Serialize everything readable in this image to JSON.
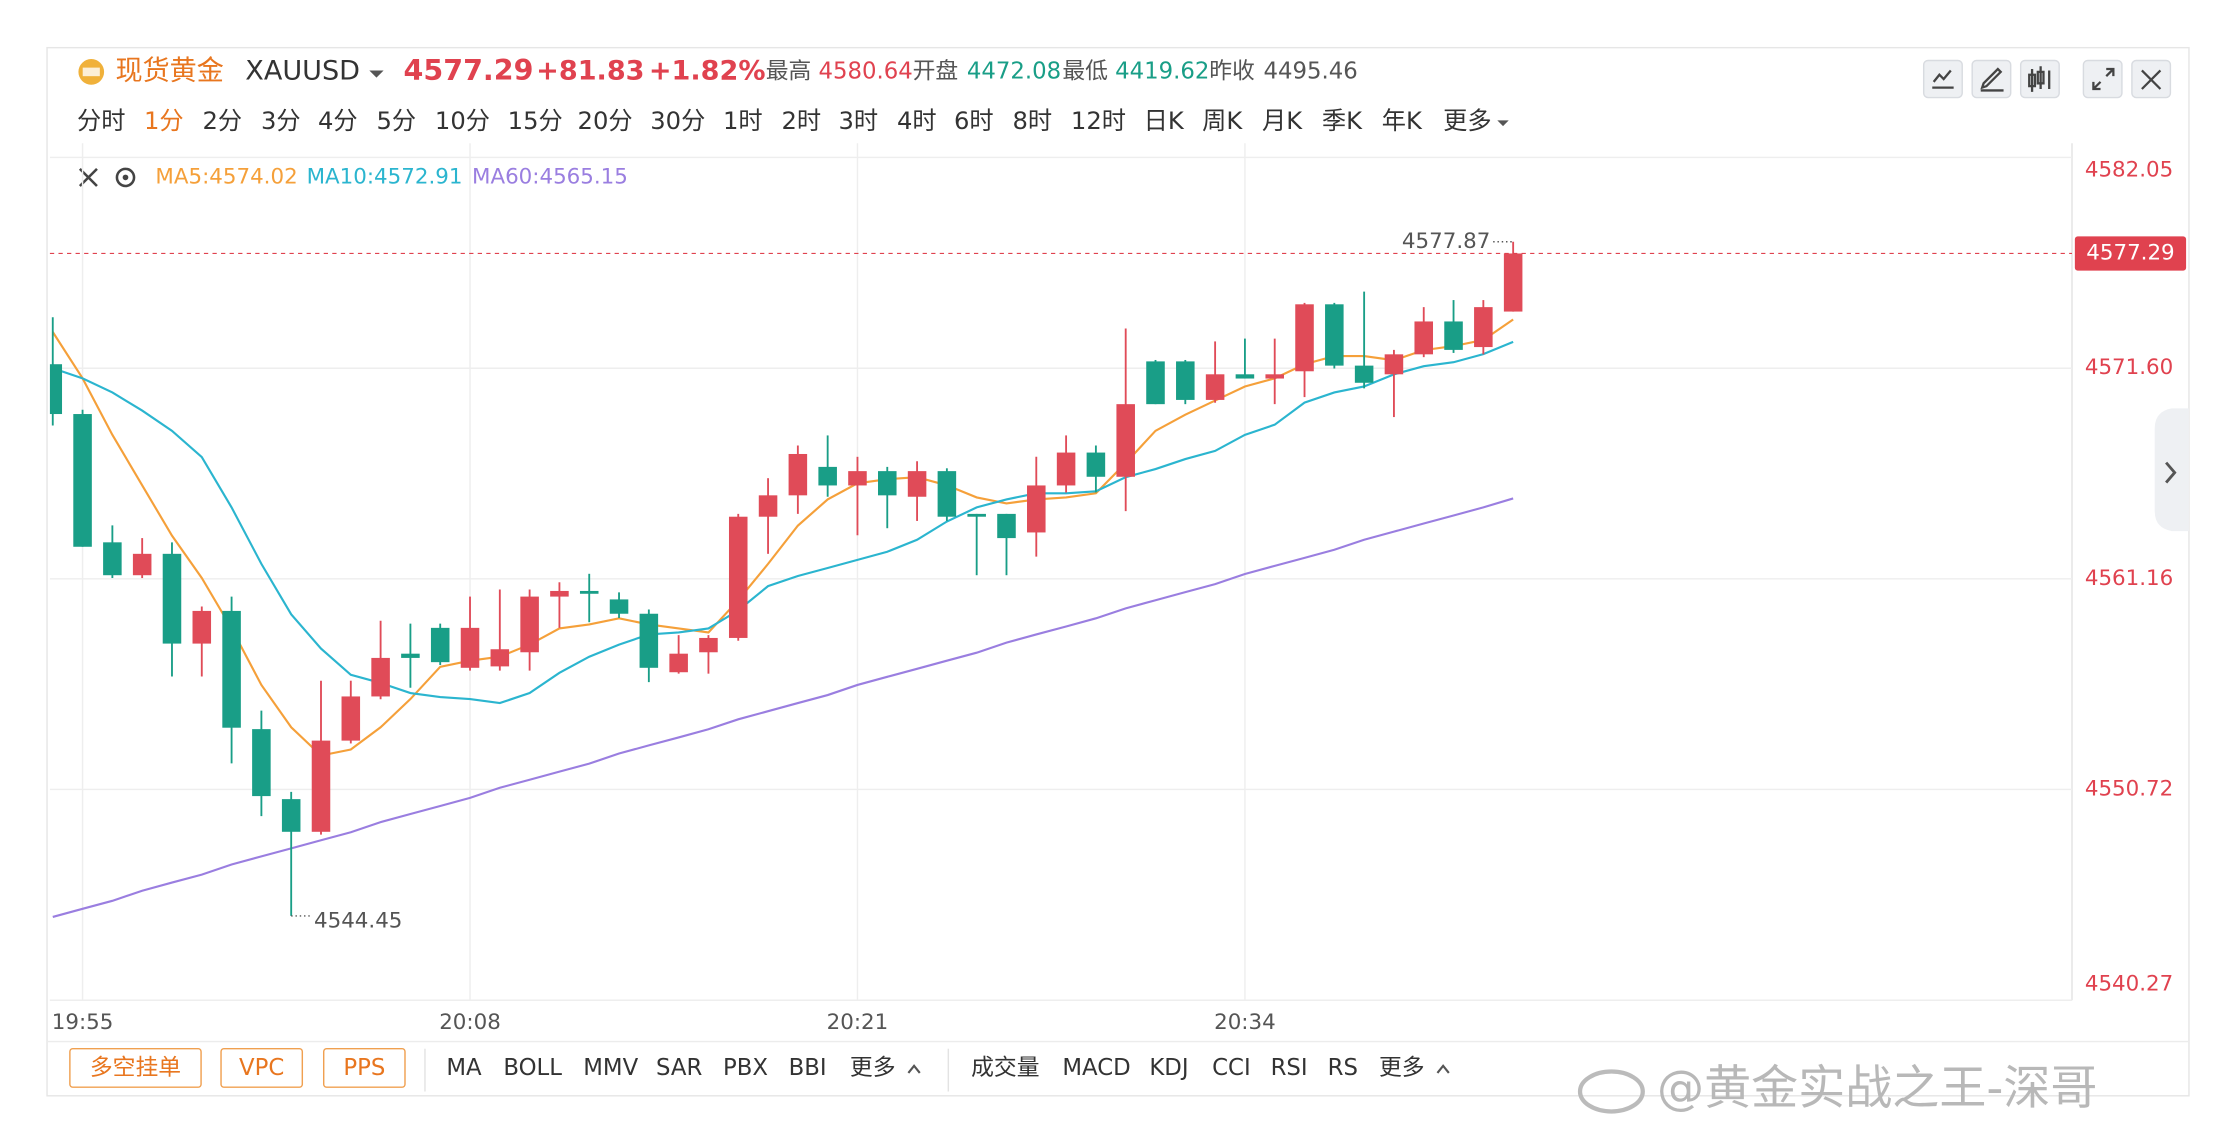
{
  "header": {
    "name": "现货黄金",
    "symbol": "XAUUSD",
    "change": "+81.83",
    "change_pct": "+1.82%",
    "high_label": "最高",
    "high": "4580.64",
    "open_label": "开盘",
    "open": "4472.08",
    "low_label": "最低",
    "low": "4419.62",
    "prev_label": "昨收",
    "prev": "4495.46"
  },
  "intervals": {
    "items": [
      "分时",
      "1分",
      "2分",
      "3分",
      "4分",
      "5分",
      "10分",
      "15分",
      "20分",
      "30分",
      "1时",
      "2时",
      "3时",
      "4时",
      "6时",
      "8时",
      "12时",
      "日K",
      "周K",
      "月K",
      "季K",
      "年K",
      "更多"
    ],
    "selected": 1
  },
  "bottom": {
    "buttons": [
      "多空挂单",
      "VPC",
      "PPS"
    ],
    "main_indicators": [
      "MA",
      "BOLL",
      "MMV",
      "SAR",
      "PBX",
      "BBI",
      "更多"
    ],
    "sub_indicators": [
      "成交量",
      "MACD",
      "KDJ",
      "CCI",
      "RSI",
      "RS",
      "更多"
    ]
  },
  "watermark": "@黄金实战之王-深哥",
  "chart_data": {
    "type": "candlestick",
    "categories": [
      null,
      "19:55",
      null,
      null,
      null,
      null,
      null,
      null,
      null,
      null,
      null,
      null,
      null,
      null,
      "20:08",
      null,
      null,
      null,
      null,
      null,
      null,
      null,
      null,
      null,
      null,
      null,
      null,
      "20:21",
      null,
      null,
      null,
      null,
      null,
      null,
      null,
      null,
      null,
      null,
      null,
      null,
      "20:34",
      null,
      null,
      null,
      null,
      null,
      null,
      null,
      null,
      null
    ],
    "open": [
      4571.8,
      4569.33,
      4562.97,
      4561.34,
      4562.4,
      4557.95,
      4559.57,
      4553.71,
      4550.24,
      4548.62,
      4553.14,
      4555.33,
      4557.45,
      4558.73,
      4556.75,
      4556.82,
      4557.52,
      4560.28,
      4560.56,
      4560.14,
      4559.43,
      4556.53,
      4557.52,
      4558.23,
      4564.24,
      4565.3,
      4566.71,
      4565.79,
      4566.5,
      4565.23,
      4566.5,
      4564.38,
      4564.38,
      4563.46,
      4565.79,
      4567.42,
      4566.22,
      4571.94,
      4571.94,
      4570.03,
      4571.3,
      4571.09,
      4571.45,
      4574.77,
      4571.73,
      4571.3,
      4572.29,
      4573.92,
      4572.65,
      4574.41
    ],
    "high": [
      4574.13,
      4569.54,
      4563.81,
      4563.18,
      4562.97,
      4559.79,
      4560.28,
      4554.63,
      4550.6,
      4556.11,
      4556.11,
      4559.08,
      4558.94,
      4558.94,
      4560.28,
      4560.63,
      4560.63,
      4560.99,
      4561.41,
      4560.49,
      4559.64,
      4558.37,
      4558.37,
      4564.38,
      4566.15,
      4567.77,
      4568.27,
      4567.21,
      4566.71,
      4566.99,
      4566.64,
      4564.38,
      4564.38,
      4567.21,
      4568.27,
      4567.77,
      4573.57,
      4572.01,
      4572.01,
      4572.93,
      4573.07,
      4573.07,
      4574.84,
      4574.84,
      4575.4,
      4572.51,
      4574.63,
      4574.98,
      4574.98,
      4577.87
    ],
    "low": [
      4568.76,
      4562.75,
      4561.2,
      4561.2,
      4556.32,
      4556.32,
      4552.01,
      4549.4,
      4544.45,
      4548.48,
      4553.0,
      4555.19,
      4555.76,
      4556.89,
      4556.61,
      4556.61,
      4556.61,
      4558.73,
      4559.01,
      4559.22,
      4556.04,
      4556.46,
      4556.46,
      4558.09,
      4562.4,
      4564.38,
      4565.23,
      4563.32,
      4563.67,
      4564.03,
      4564.03,
      4561.34,
      4561.34,
      4562.26,
      4565.44,
      4565.44,
      4564.52,
      4569.82,
      4569.82,
      4569.89,
      4571.09,
      4569.82,
      4570.17,
      4571.59,
      4570.6,
      4569.18,
      4572.15,
      4572.36,
      4572.29,
      4574.41
    ],
    "close": [
      4569.33,
      4562.75,
      4561.34,
      4562.4,
      4557.95,
      4559.57,
      4553.78,
      4550.39,
      4548.62,
      4553.14,
      4555.33,
      4557.24,
      4557.24,
      4557.03,
      4558.73,
      4557.67,
      4560.28,
      4560.56,
      4560.42,
      4559.43,
      4556.75,
      4557.45,
      4558.23,
      4564.24,
      4565.3,
      4567.35,
      4565.79,
      4566.5,
      4565.3,
      4566.5,
      4564.24,
      4564.24,
      4563.18,
      4565.79,
      4567.42,
      4566.22,
      4569.82,
      4569.82,
      4570.03,
      4571.3,
      4571.09,
      4571.3,
      4574.77,
      4571.73,
      4570.88,
      4572.29,
      4573.92,
      4572.51,
      4574.63,
      4577.29
    ],
    "up_color": "#e04b58",
    "down_color": "#199e87",
    "series": [
      {
        "name": "MA5:4574.02",
        "color": "#f5a03a",
        "values": [
          4573.4,
          4571.1,
          4568.3,
          4565.8,
          4563.3,
          4561.2,
          4558.7,
          4555.9,
          4553.8,
          4552.4,
          4552.7,
          4553.8,
          4555.2,
          4556.8,
          4557.1,
          4557.3,
          4557.9,
          4558.7,
          4558.9,
          4559.2,
          4558.9,
          4558.7,
          4558.5,
          4560.1,
          4561.9,
          4563.8,
          4565.1,
          4565.9,
          4566.1,
          4566.2,
          4565.8,
          4565.2,
          4564.9,
          4565.1,
          4565.2,
          4565.4,
          4566.9,
          4568.5,
          4569.3,
          4570.0,
          4570.7,
          4571.1,
          4571.8,
          4572.2,
          4572.2,
          4572.0,
          4572.5,
          4572.7,
          4573.0,
          4574.02
        ]
      },
      {
        "name": "MA10:4572.91",
        "color": "#2bb5cf",
        "values": [
          4571.6,
          4571.1,
          4570.4,
          4569.5,
          4568.5,
          4567.2,
          4564.7,
          4561.9,
          4559.4,
          4557.7,
          4556.4,
          4556.0,
          4555.5,
          4555.3,
          4555.2,
          4555.0,
          4555.5,
          4556.5,
          4557.3,
          4557.9,
          4558.4,
          4558.5,
          4558.7,
          4559.6,
          4560.8,
          4561.3,
          4561.7,
          4562.1,
          4562.5,
          4563.1,
          4564.0,
          4564.7,
          4565.1,
          4565.4,
          4565.4,
          4565.5,
          4566.2,
          4566.6,
          4567.1,
          4567.5,
          4568.3,
          4568.8,
          4569.9,
          4570.4,
          4570.7,
          4571.3,
          4571.7,
          4571.9,
          4572.3,
          4572.91
        ]
      },
      {
        "name": "MA60:4565.15",
        "color": "#9a7ee0",
        "values": [
          4544.4,
          4544.8,
          4545.2,
          4545.7,
          4546.1,
          4546.5,
          4547.0,
          4547.4,
          4547.8,
          4548.2,
          4548.6,
          4549.1,
          4549.5,
          4549.9,
          4550.3,
          4550.8,
          4551.2,
          4551.6,
          4552.0,
          4552.5,
          4552.9,
          4553.3,
          4553.7,
          4554.2,
          4554.6,
          4555.0,
          4555.4,
          4555.9,
          4556.3,
          4556.7,
          4557.1,
          4557.5,
          4558.0,
          4558.4,
          4558.8,
          4559.2,
          4559.7,
          4560.1,
          4560.5,
          4560.9,
          4561.4,
          4561.8,
          4562.2,
          4562.6,
          4563.1,
          4563.5,
          4563.9,
          4564.3,
          4564.7,
          4565.15
        ]
      }
    ],
    "ylim": [
      4540.27,
      4582.05
    ],
    "yticks": [
      4540.27,
      4550.72,
      4561.16,
      {
        "value": 4571.6,
        "label": "4571.60"
      },
      4582.05
    ],
    "grid": true,
    "axis_color": "#e0424f"
  }
}
